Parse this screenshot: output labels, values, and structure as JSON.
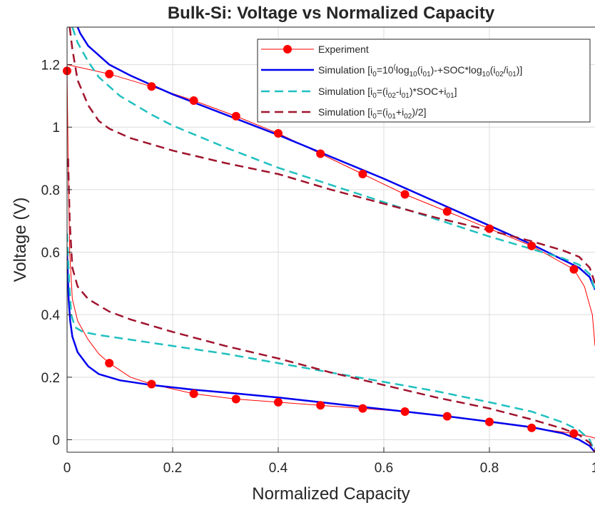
{
  "chart_data": {
    "type": "line",
    "title": "Bulk-Si: Voltage vs Normalized Capacity",
    "xlabel": "Normalized Capacity",
    "ylabel": "Voltage (V)",
    "xlim": [
      0,
      1
    ],
    "ylim": [
      -0.04,
      1.32
    ],
    "x_ticks": [
      0,
      0.2,
      0.4,
      0.6,
      0.8,
      1
    ],
    "x_tick_labels": [
      "0",
      "0.2",
      "0.4",
      "0.6",
      "0.8",
      "1"
    ],
    "y_ticks": [
      0,
      0.2,
      0.4,
      0.6,
      0.8,
      1,
      1.2
    ],
    "y_tick_labels": [
      "0",
      "0.2",
      "0.4",
      "0.6",
      "0.8",
      "1",
      "1.2"
    ],
    "grid": true,
    "legend_position": "top-right",
    "series": [
      {
        "name": "Experiment",
        "color": "#ff0000",
        "style": "solid-thin-with-markers",
        "marker_points_upper": [
          [
            0,
            1.18
          ],
          [
            0.08,
            1.17
          ],
          [
            0.16,
            1.13
          ],
          [
            0.24,
            1.085
          ],
          [
            0.32,
            1.035
          ],
          [
            0.4,
            0.98
          ],
          [
            0.48,
            0.915
          ],
          [
            0.56,
            0.85
          ],
          [
            0.64,
            0.785
          ],
          [
            0.72,
            0.73
          ],
          [
            0.8,
            0.675
          ],
          [
            0.88,
            0.62
          ],
          [
            0.96,
            0.545
          ]
        ],
        "marker_points_lower": [
          [
            0.08,
            0.245
          ],
          [
            0.16,
            0.178
          ],
          [
            0.24,
            0.147
          ],
          [
            0.32,
            0.13
          ],
          [
            0.4,
            0.12
          ],
          [
            0.48,
            0.11
          ],
          [
            0.56,
            0.1
          ],
          [
            0.64,
            0.09
          ],
          [
            0.72,
            0.075
          ],
          [
            0.8,
            0.057
          ],
          [
            0.88,
            0.038
          ],
          [
            0.96,
            0.02
          ]
        ],
        "upper": [
          [
            0,
            1.2
          ],
          [
            0.08,
            1.17
          ],
          [
            0.16,
            1.13
          ],
          [
            0.24,
            1.085
          ],
          [
            0.32,
            1.035
          ],
          [
            0.4,
            0.98
          ],
          [
            0.48,
            0.915
          ],
          [
            0.56,
            0.85
          ],
          [
            0.64,
            0.785
          ],
          [
            0.72,
            0.73
          ],
          [
            0.8,
            0.675
          ],
          [
            0.88,
            0.62
          ],
          [
            0.96,
            0.545
          ],
          [
            0.98,
            0.49
          ],
          [
            0.995,
            0.4
          ],
          [
            1.0,
            0.3
          ]
        ],
        "lower": [
          [
            0,
            1.18
          ],
          [
            0.002,
            0.9
          ],
          [
            0.005,
            0.6
          ],
          [
            0.01,
            0.45
          ],
          [
            0.02,
            0.38
          ],
          [
            0.04,
            0.32
          ],
          [
            0.06,
            0.275
          ],
          [
            0.08,
            0.245
          ],
          [
            0.12,
            0.2
          ],
          [
            0.16,
            0.178
          ],
          [
            0.24,
            0.147
          ],
          [
            0.32,
            0.13
          ],
          [
            0.4,
            0.12
          ],
          [
            0.48,
            0.11
          ],
          [
            0.56,
            0.1
          ],
          [
            0.64,
            0.09
          ],
          [
            0.72,
            0.075
          ],
          [
            0.8,
            0.057
          ],
          [
            0.88,
            0.038
          ],
          [
            0.96,
            0.02
          ],
          [
            0.99,
            0.01
          ],
          [
            1.0,
            0.005
          ]
        ]
      },
      {
        "name": "Simulation [i0=10^(log10(i01)-+SOC*log10(i02/i01))]",
        "color": "#0000ee",
        "style": "solid-thick",
        "upper": [
          [
            0.02,
            1.32
          ],
          [
            0.025,
            1.3
          ],
          [
            0.04,
            1.26
          ],
          [
            0.06,
            1.23
          ],
          [
            0.08,
            1.2
          ],
          [
            0.12,
            1.165
          ],
          [
            0.16,
            1.135
          ],
          [
            0.2,
            1.105
          ],
          [
            0.3,
            1.04
          ],
          [
            0.4,
            0.975
          ],
          [
            0.5,
            0.905
          ],
          [
            0.6,
            0.835
          ],
          [
            0.7,
            0.76
          ],
          [
            0.8,
            0.685
          ],
          [
            0.88,
            0.625
          ],
          [
            0.94,
            0.575
          ],
          [
            0.97,
            0.55
          ],
          [
            0.99,
            0.52
          ],
          [
            1.0,
            0.48
          ]
        ],
        "lower": [
          [
            0,
            0.6
          ],
          [
            0.003,
            0.45
          ],
          [
            0.006,
            0.38
          ],
          [
            0.01,
            0.33
          ],
          [
            0.02,
            0.28
          ],
          [
            0.04,
            0.235
          ],
          [
            0.06,
            0.21
          ],
          [
            0.1,
            0.19
          ],
          [
            0.16,
            0.175
          ],
          [
            0.24,
            0.16
          ],
          [
            0.32,
            0.148
          ],
          [
            0.4,
            0.135
          ],
          [
            0.48,
            0.12
          ],
          [
            0.56,
            0.105
          ],
          [
            0.64,
            0.09
          ],
          [
            0.72,
            0.075
          ],
          [
            0.8,
            0.058
          ],
          [
            0.88,
            0.04
          ],
          [
            0.94,
            0.02
          ],
          [
            0.97,
            0.0
          ],
          [
            0.99,
            -0.02
          ],
          [
            1.0,
            -0.04
          ]
        ]
      },
      {
        "name": "Simulation [i0=(i02-i01)*SOC+i01]",
        "color": "#20c0c0",
        "style": "dashed",
        "upper": [
          [
            0.01,
            1.32
          ],
          [
            0.02,
            1.27
          ],
          [
            0.04,
            1.21
          ],
          [
            0.06,
            1.16
          ],
          [
            0.1,
            1.1
          ],
          [
            0.16,
            1.04
          ],
          [
            0.2,
            1.005
          ],
          [
            0.3,
            0.935
          ],
          [
            0.4,
            0.87
          ],
          [
            0.5,
            0.815
          ],
          [
            0.6,
            0.76
          ],
          [
            0.7,
            0.705
          ],
          [
            0.8,
            0.65
          ],
          [
            0.88,
            0.61
          ],
          [
            0.94,
            0.58
          ],
          [
            0.97,
            0.56
          ],
          [
            0.99,
            0.53
          ],
          [
            1.0,
            0.48
          ]
        ],
        "lower": [
          [
            0,
            0.66
          ],
          [
            0.004,
            0.5
          ],
          [
            0.008,
            0.4
          ],
          [
            0.015,
            0.36
          ],
          [
            0.03,
            0.345
          ],
          [
            0.06,
            0.335
          ],
          [
            0.1,
            0.325
          ],
          [
            0.2,
            0.3
          ],
          [
            0.3,
            0.275
          ],
          [
            0.4,
            0.245
          ],
          [
            0.5,
            0.215
          ],
          [
            0.6,
            0.185
          ],
          [
            0.7,
            0.155
          ],
          [
            0.8,
            0.12
          ],
          [
            0.88,
            0.09
          ],
          [
            0.94,
            0.055
          ],
          [
            0.97,
            0.03
          ],
          [
            0.99,
            0.0
          ],
          [
            1.0,
            -0.04
          ]
        ]
      },
      {
        "name": "Simulation [i0=(i01+i02)/2]",
        "color": "#a0142d",
        "style": "dashed",
        "upper": [
          [
            0.005,
            1.32
          ],
          [
            0.01,
            1.25
          ],
          [
            0.02,
            1.15
          ],
          [
            0.04,
            1.07
          ],
          [
            0.06,
            1.02
          ],
          [
            0.08,
            0.995
          ],
          [
            0.12,
            0.965
          ],
          [
            0.16,
            0.945
          ],
          [
            0.2,
            0.925
          ],
          [
            0.3,
            0.885
          ],
          [
            0.4,
            0.85
          ],
          [
            0.5,
            0.8
          ],
          [
            0.6,
            0.755
          ],
          [
            0.7,
            0.71
          ],
          [
            0.8,
            0.67
          ],
          [
            0.88,
            0.635
          ],
          [
            0.94,
            0.605
          ],
          [
            0.97,
            0.585
          ],
          [
            0.99,
            0.55
          ],
          [
            1.0,
            0.5
          ]
        ],
        "lower": [
          [
            0.002,
            0.9
          ],
          [
            0.005,
            0.7
          ],
          [
            0.01,
            0.55
          ],
          [
            0.02,
            0.49
          ],
          [
            0.04,
            0.45
          ],
          [
            0.08,
            0.41
          ],
          [
            0.12,
            0.385
          ],
          [
            0.2,
            0.345
          ],
          [
            0.3,
            0.3
          ],
          [
            0.4,
            0.26
          ],
          [
            0.5,
            0.215
          ],
          [
            0.6,
            0.175
          ],
          [
            0.7,
            0.135
          ],
          [
            0.8,
            0.1
          ],
          [
            0.88,
            0.065
          ],
          [
            0.94,
            0.035
          ],
          [
            0.97,
            0.015
          ],
          [
            0.99,
            -0.01
          ],
          [
            1.0,
            -0.04
          ]
        ]
      }
    ]
  },
  "legend": [
    {
      "key": "exp",
      "text": "Experiment"
    },
    {
      "key": "sim1",
      "text": "Simulation [i",
      "sub_a": "0",
      "text_b": "=10",
      "sup": "(",
      "text_c": "log",
      "sub_c": "10",
      "text_d": "(i",
      "sub_d": "01",
      "text_e": ")-+SOC*log",
      "sub_e": "10",
      "text_f": "(i",
      "sub_f": "02",
      "text_g": "/i",
      "sub_g": "01",
      "text_h": ")]"
    },
    {
      "key": "sim2",
      "text": "Simulation [i",
      "sub_a": "0",
      "text_b": "=(i",
      "sub_b": "02",
      "text_c": "-i",
      "sub_c": "01",
      "text_d": ")*SOC+i",
      "sub_d": "01",
      "text_e": "]"
    },
    {
      "key": "sim3",
      "text": "Simulation [i",
      "sub_a": "0",
      "text_b": "=(i",
      "sub_b": "01",
      "text_c": "+i",
      "sub_c": "02",
      "text_d": ")/2]"
    }
  ]
}
